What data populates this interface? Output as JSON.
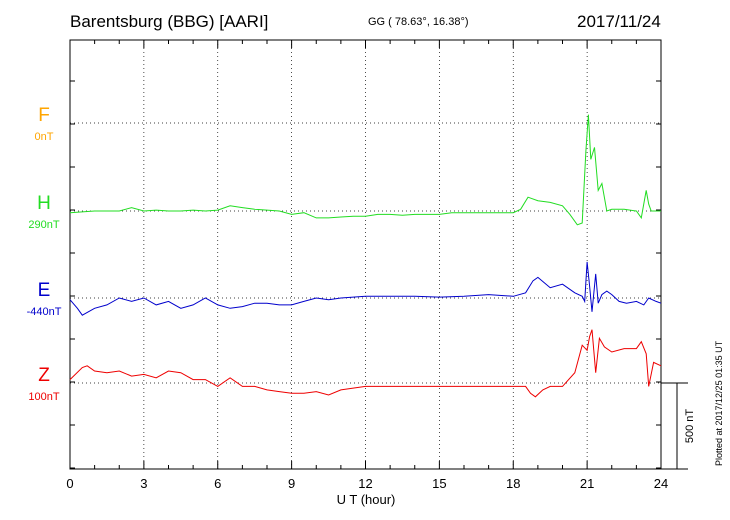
{
  "header": {
    "station": "Barentsburg (BBG)  [AARI]",
    "coords": "GG ( 78.63°,  16.38°)",
    "date": "2017/11/24"
  },
  "plotted_note": "Plotted at 2017/12/25 01:35 UT",
  "chart_data": {
    "type": "line",
    "xlabel": "U T (hour)",
    "ylabel": "",
    "xlim": [
      0,
      24
    ],
    "x_ticks": [
      "0",
      "3",
      "6",
      "9",
      "12",
      "15",
      "18",
      "21",
      "24"
    ],
    "grid": true,
    "scale_bar": {
      "label": "500 nT",
      "value_nT": 500
    },
    "series": [
      {
        "name": "F",
        "baseline": "0nT",
        "color": "#ffa500",
        "x": [],
        "y": []
      },
      {
        "name": "H",
        "baseline": "290nT",
        "color": "#22dd22",
        "x": [
          0,
          0.5,
          1,
          1.5,
          2,
          2.5,
          3,
          3.5,
          4,
          4.5,
          5,
          5.5,
          6,
          6.5,
          7,
          7.5,
          8,
          8.5,
          9,
          9.5,
          10,
          10.5,
          11,
          11.5,
          12,
          12.5,
          13,
          13.5,
          14,
          14.5,
          15,
          15.5,
          16,
          16.5,
          17,
          17.5,
          18,
          18.3,
          18.6,
          19,
          19.5,
          20,
          20.3,
          20.6,
          20.8,
          20.95,
          21.05,
          21.15,
          21.3,
          21.45,
          21.6,
          21.8,
          22,
          22.5,
          23,
          23.2,
          23.4,
          23.5,
          23.6,
          23.8,
          24
        ],
        "y": [
          -10,
          -5,
          0,
          0,
          0,
          20,
          0,
          5,
          0,
          0,
          5,
          0,
          5,
          30,
          20,
          10,
          5,
          0,
          -20,
          -10,
          -40,
          -40,
          -35,
          -30,
          -30,
          -20,
          -20,
          -25,
          -20,
          -20,
          -20,
          -10,
          -10,
          -10,
          -10,
          -10,
          -10,
          10,
          80,
          60,
          50,
          30,
          -20,
          -80,
          -70,
          350,
          560,
          300,
          370,
          120,
          160,
          0,
          10,
          10,
          0,
          -40,
          120,
          40,
          0,
          0,
          0
        ]
      },
      {
        "name": "E",
        "baseline": "-440nT",
        "color": "#0000cc",
        "x": [
          0,
          0.3,
          0.5,
          1,
          1.5,
          2,
          2.5,
          3,
          3.5,
          4,
          4.5,
          5,
          5.5,
          6,
          6.5,
          7,
          7.5,
          8,
          8.5,
          9,
          9.5,
          10,
          10.5,
          11,
          12,
          13,
          14,
          15,
          16,
          17,
          18,
          18.5,
          18.8,
          19,
          19.5,
          20,
          20.5,
          20.8,
          20.9,
          21,
          21.1,
          21.2,
          21.35,
          21.45,
          21.6,
          21.8,
          22,
          22.3,
          22.6,
          23,
          23.3,
          23.5,
          23.8,
          24
        ],
        "y": [
          -10,
          -60,
          -100,
          -60,
          -40,
          0,
          -20,
          0,
          -40,
          -20,
          -60,
          -40,
          0,
          -40,
          -60,
          -50,
          -30,
          -30,
          -40,
          -40,
          -20,
          0,
          -10,
          0,
          10,
          10,
          10,
          5,
          10,
          20,
          10,
          30,
          100,
          120,
          60,
          80,
          30,
          10,
          -20,
          210,
          70,
          -80,
          140,
          -30,
          20,
          40,
          20,
          -20,
          -30,
          -20,
          -40,
          0,
          -20,
          -30
        ]
      },
      {
        "name": "Z",
        "baseline": "100nT",
        "color": "#ee0000",
        "x": [
          0,
          0.5,
          0.7,
          1,
          1.5,
          2,
          2.5,
          3,
          3.5,
          4,
          4.5,
          5,
          5.5,
          6,
          6.5,
          7,
          7.5,
          8,
          8.5,
          9,
          9.5,
          10,
          10.5,
          11,
          12,
          13,
          14,
          15,
          16,
          17,
          18,
          18.5,
          18.7,
          18.9,
          19.2,
          19.5,
          20,
          20.5,
          20.8,
          21,
          21.1,
          21.2,
          21.35,
          21.5,
          21.7,
          22,
          22.5,
          23,
          23.2,
          23.4,
          23.5,
          23.7,
          24
        ],
        "y": [
          20,
          90,
          100,
          70,
          60,
          70,
          40,
          50,
          30,
          70,
          60,
          20,
          20,
          -20,
          30,
          -20,
          -20,
          -40,
          -50,
          -60,
          -60,
          -50,
          -70,
          -40,
          -20,
          -20,
          -20,
          -20,
          -20,
          -20,
          -20,
          -20,
          -60,
          -80,
          -40,
          -20,
          -20,
          60,
          220,
          190,
          270,
          310,
          60,
          260,
          210,
          180,
          200,
          200,
          240,
          170,
          -20,
          120,
          100
        ]
      }
    ]
  }
}
